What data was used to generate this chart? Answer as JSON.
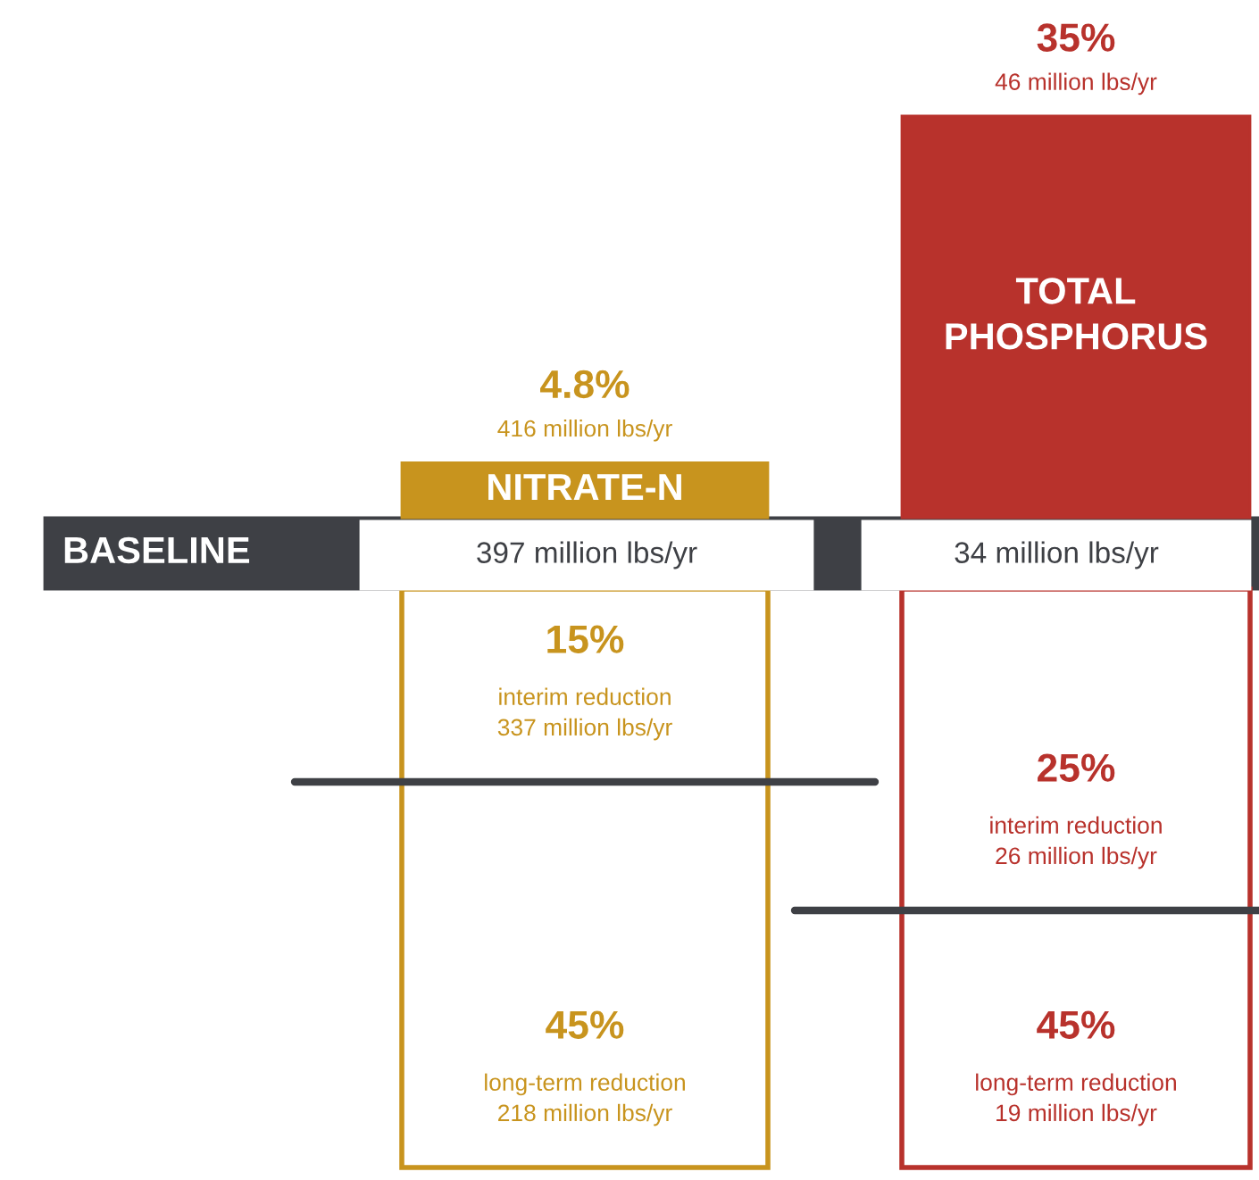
{
  "chart_data": {
    "type": "other",
    "categories": [
      "NITRATE-N",
      "TOTAL PHOSPHORUS"
    ],
    "series": [
      {
        "colors": [
          "#c8941e",
          "#b8322c"
        ],
        "values": [
          4.8,
          35
        ],
        "value_labels": [
          "4.8%",
          "35%"
        ]
      },
      {
        "colors": [
          "#c8941e",
          "#b8322c"
        ],
        "values": [
          15,
          25
        ],
        "value_labels": [
          "15%",
          "25%"
        ]
      },
      {
        "colors": [
          "#c8941e",
          "#b8322c"
        ],
        "values": [
          45,
          45
        ],
        "value_labels": [
          "45%",
          "45%"
        ]
      }
    ],
    "annotations": [
      "BASELINE",
      "397 million lbs/yr",
      "34 million lbs/yr",
      "416 million lbs/yr",
      "46 million lbs/yr",
      "interim reduction\n337 million lbs/yr",
      "interim reduction\n26 million lbs/yr",
      "long-term reduction\n218 million lbs/yr",
      "long-term reduction\n19 million lbs/yr"
    ]
  }
}
